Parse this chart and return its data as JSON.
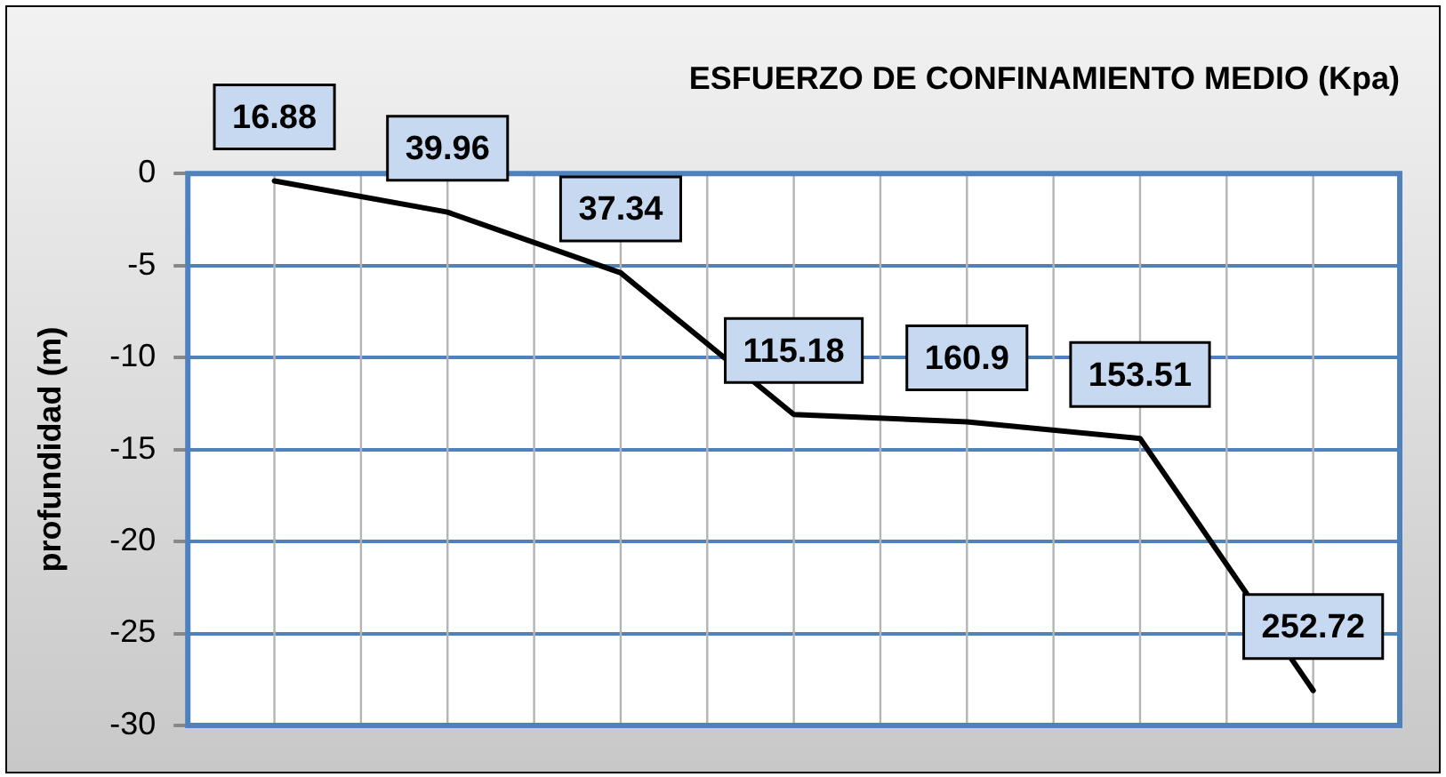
{
  "chart_data": {
    "type": "line",
    "title": "ESFUERZO DE CONFINAMIENTO MEDIO (Kpa)",
    "ylabel": "profundidad (m)",
    "categories": [
      "16.88",
      "39.96",
      "37.34",
      "115.18",
      "160.9",
      "153.51",
      "252.72"
    ],
    "tick_labels": "y",
    "series": [
      {
        "color": "#000000",
        "values": [
          -0.4,
          -2.1,
          -5.4,
          -13.1,
          -13.5,
          -14.4,
          -28.1
        ]
      }
    ],
    "ylim": [
      -30,
      0
    ],
    "yticks": [
      -30,
      -25,
      -20,
      -15,
      -10,
      -5,
      0
    ],
    "grid": true,
    "legend": false,
    "marker": "none",
    "line_style": "solid"
  }
}
